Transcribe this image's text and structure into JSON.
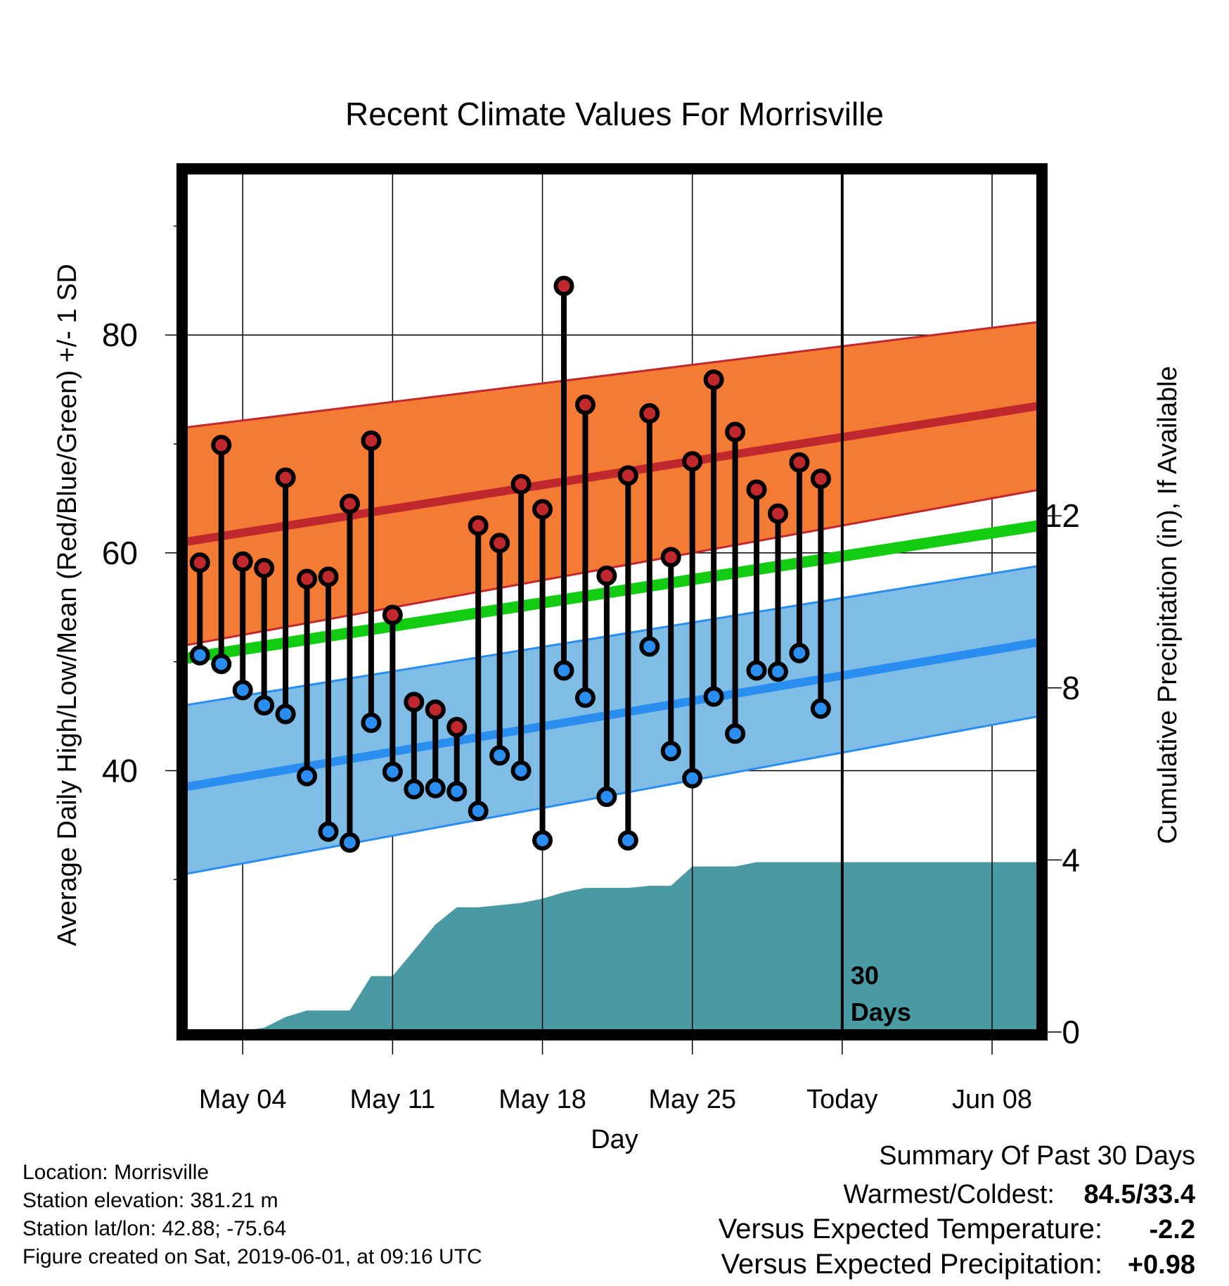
{
  "chart_data": {
    "type": "line",
    "title": "Recent Climate Values For Morrisville",
    "xlabel": "Day",
    "ylabel": "Average Daily High/Low/Mean (Red/Blue/Green) +/- 1 SD",
    "y2label": "Cumulative Precipitation (in), If Available",
    "ylim": [
      16,
      95
    ],
    "y_ticks": [
      40,
      60,
      80
    ],
    "y2lim": [
      0,
      20
    ],
    "y2_ticks": [
      0,
      4,
      8,
      12
    ],
    "xlim": [
      1.3,
      41.2
    ],
    "x_ticks": [
      {
        "day": 4,
        "label": "May 04"
      },
      {
        "day": 11,
        "label": "May 11"
      },
      {
        "day": 18,
        "label": "May 18"
      },
      {
        "day": 25,
        "label": "May 25"
      },
      {
        "day": 32,
        "label": "Today"
      },
      {
        "day": 39,
        "label": "Jun 08"
      }
    ],
    "today_day": 32,
    "today_annotation": [
      "30",
      "Days"
    ],
    "grid": true,
    "days": [
      2,
      3,
      4,
      5,
      6,
      7,
      8,
      9,
      10,
      11,
      12,
      13,
      14,
      15,
      16,
      17,
      18,
      19,
      20,
      21,
      22,
      23,
      24,
      25,
      26,
      27,
      28,
      29,
      30,
      31
    ],
    "series": [
      {
        "name": "High",
        "color": "#c0282d",
        "values": [
          59.1,
          69.9,
          59.2,
          58.6,
          66.9,
          57.6,
          57.8,
          64.5,
          70.3,
          54.3,
          46.3,
          45.6,
          44.0,
          62.5,
          60.9,
          66.3,
          64.0,
          84.5,
          73.6,
          57.9,
          67.1,
          72.8,
          59.6,
          68.4,
          75.9,
          71.1,
          65.8,
          63.6,
          68.3,
          66.8
        ]
      },
      {
        "name": "Low",
        "color": "#2a8ef0",
        "values": [
          50.6,
          49.8,
          47.4,
          46.0,
          45.2,
          39.5,
          34.4,
          33.4,
          44.4,
          39.9,
          38.3,
          38.4,
          38.1,
          36.3,
          41.4,
          40.0,
          33.6,
          49.2,
          46.7,
          37.6,
          33.6,
          51.4,
          41.8,
          39.3,
          46.8,
          43.4,
          49.2,
          49.1,
          50.8,
          45.7
        ]
      }
    ],
    "normals": {
      "days": [
        1.3,
        41.2
      ],
      "high_mean": [
        61.0,
        73.5
      ],
      "high_plus_sd": [
        71.5,
        81.2
      ],
      "high_minus_sd": [
        51.5,
        65.8
      ],
      "mean": [
        50.3,
        62.5
      ],
      "low_mean": [
        38.5,
        51.8
      ],
      "low_plus_sd": [
        46.0,
        58.8
      ],
      "low_minus_sd": [
        30.5,
        45.0
      ]
    },
    "precip_cumulative": {
      "days": [
        1.3,
        3,
        4,
        5,
        6,
        7,
        8,
        9,
        10,
        11,
        12,
        13,
        14,
        15,
        16,
        17,
        18,
        19,
        20,
        21,
        22,
        23,
        24,
        25,
        26,
        27,
        28,
        29,
        30,
        31,
        32,
        41.2
      ],
      "values": [
        0.0,
        0.0,
        0.03,
        0.1,
        0.35,
        0.5,
        0.5,
        0.5,
        1.3,
        1.3,
        1.9,
        2.5,
        2.9,
        2.9,
        2.95,
        3.0,
        3.1,
        3.25,
        3.35,
        3.35,
        3.35,
        3.4,
        3.4,
        3.85,
        3.85,
        3.85,
        3.95,
        3.95,
        3.95,
        3.95,
        3.95,
        3.95
      ]
    },
    "colors": {
      "high_band": "#f47b34",
      "high_line": "#c0282d",
      "mean_line": "#12cc12",
      "low_band": "#7fbde6",
      "low_line": "#2a8ef0",
      "precip": "#4a9aa3",
      "high_dot": "#c0282d",
      "low_dot": "#2a8ef0"
    }
  },
  "footer": {
    "location": "Location: Morrisville",
    "elevation": "Station elevation: 381.21 m",
    "latlon": "Station lat/lon: 42.88; -75.64",
    "created": "Figure created on Sat, 2019-06-01, at 09:16 UTC"
  },
  "summary": {
    "title": "Summary Of Past 30 Days",
    "warm_cold_label": "Warmest/Coldest:",
    "warm_cold_value": "84.5/33.4",
    "temp_label": "Versus Expected Temperature:",
    "temp_value": "-2.2",
    "temp_color": "#2a8ef0",
    "precip_label": "Versus Expected Precipitation:",
    "precip_value": "+0.98",
    "precip_color": "#19c119"
  }
}
